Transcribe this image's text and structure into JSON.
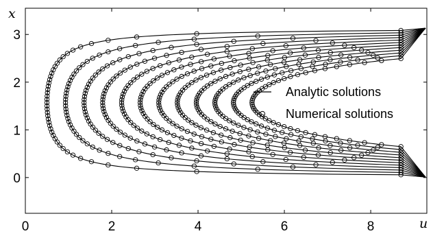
{
  "chart_data": {
    "type": "line",
    "title": "",
    "xlabel": "u",
    "ylabel": "x",
    "xlim": [
      0,
      9.3
    ],
    "ylim": [
      -0.75,
      3.55
    ],
    "xticks": [
      0,
      2,
      4,
      6,
      8
    ],
    "yticks": [
      0,
      1,
      2,
      3
    ],
    "grid": false,
    "legend": {
      "placement": "center-right",
      "entries": [
        {
          "label": "Analytic solutions",
          "marker": "line"
        },
        {
          "label": "Numerical solutions",
          "marker": "open-circle"
        }
      ]
    },
    "x_domain": [
      0,
      3.14159
    ],
    "x_center": 1.5708,
    "series": [
      {
        "u_min": 0.5,
        "u_max": 8.7
      },
      {
        "u_min": 0.93,
        "u_max": 8.7
      },
      {
        "u_min": 1.36,
        "u_max": 8.7
      },
      {
        "u_min": 1.79,
        "u_max": 8.7
      },
      {
        "u_min": 2.23,
        "u_max": 8.7
      },
      {
        "u_min": 2.66,
        "u_max": 8.7
      },
      {
        "u_min": 3.09,
        "u_max": 8.7
      },
      {
        "u_min": 3.52,
        "u_max": 8.7
      },
      {
        "u_min": 3.96,
        "u_max": 8.7
      },
      {
        "u_min": 4.39,
        "u_max": 8.7
      },
      {
        "u_min": 4.82,
        "u_max": 8.7
      },
      {
        "u_min": 5.25,
        "u_max": 8.7
      }
    ]
  }
}
